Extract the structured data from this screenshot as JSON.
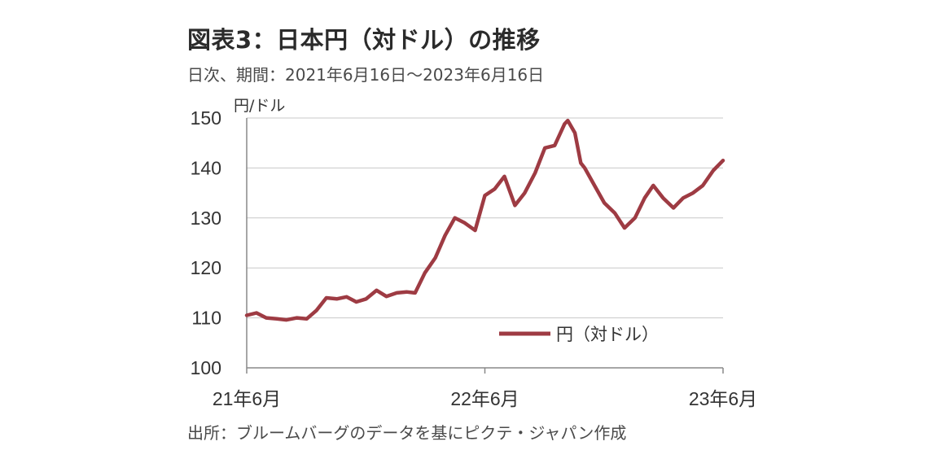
{
  "title": "図表3：日本円（対ドル）の推移",
  "subtitle": "日次、期間：2021年6月16日～2023年6月16日",
  "source": "出所：ブルームバーグのデータを基にピクテ・ジャパン作成",
  "chart_data": {
    "type": "line",
    "ylabel": "円/ドル",
    "ylim": [
      100,
      150
    ],
    "yticks": [
      100,
      110,
      120,
      130,
      140,
      150
    ],
    "xlim": [
      "2021-06-16",
      "2023-06-16"
    ],
    "xticks": [
      {
        "label": "21年6月",
        "date": "2021-06-16"
      },
      {
        "label": "22年6月",
        "date": "2022-06-16"
      },
      {
        "label": "23年6月",
        "date": "2023-06-16"
      }
    ],
    "grid": true,
    "legend_position": "bottom-right",
    "series_color": "#9e3b43",
    "series": [
      {
        "name": "円（対ドル）",
        "x": [
          "2021-06-16",
          "2021-07-01",
          "2021-07-16",
          "2021-08-01",
          "2021-08-16",
          "2021-09-01",
          "2021-09-16",
          "2021-10-01",
          "2021-10-16",
          "2021-11-01",
          "2021-11-16",
          "2021-12-01",
          "2021-12-16",
          "2022-01-01",
          "2022-01-16",
          "2022-02-01",
          "2022-02-16",
          "2022-03-01",
          "2022-03-16",
          "2022-04-01",
          "2022-04-16",
          "2022-05-01",
          "2022-05-16",
          "2022-06-01",
          "2022-06-16",
          "2022-07-01",
          "2022-07-16",
          "2022-08-01",
          "2022-08-16",
          "2022-09-01",
          "2022-09-16",
          "2022-10-01",
          "2022-10-16",
          "2022-10-21",
          "2022-11-01",
          "2022-11-10",
          "2022-11-16",
          "2022-12-01",
          "2022-12-16",
          "2023-01-01",
          "2023-01-16",
          "2023-02-01",
          "2023-02-16",
          "2023-03-01",
          "2023-03-16",
          "2023-04-01",
          "2023-04-16",
          "2023-05-01",
          "2023-05-16",
          "2023-06-01",
          "2023-06-16"
        ],
        "y": [
          110.5,
          111.0,
          110.0,
          109.8,
          109.6,
          110.0,
          109.8,
          111.5,
          114.0,
          113.8,
          114.2,
          113.2,
          113.8,
          115.5,
          114.3,
          115.0,
          115.2,
          115.0,
          119.0,
          122.0,
          126.5,
          130.0,
          129.0,
          127.5,
          134.5,
          135.8,
          138.3,
          132.5,
          135.0,
          139.0,
          144.0,
          144.5,
          148.8,
          149.5,
          147.0,
          141.0,
          140.0,
          136.5,
          133.0,
          131.0,
          128.0,
          130.0,
          134.0,
          136.5,
          134.0,
          132.0,
          134.0,
          135.0,
          136.5,
          139.5,
          141.5
        ]
      }
    ]
  }
}
